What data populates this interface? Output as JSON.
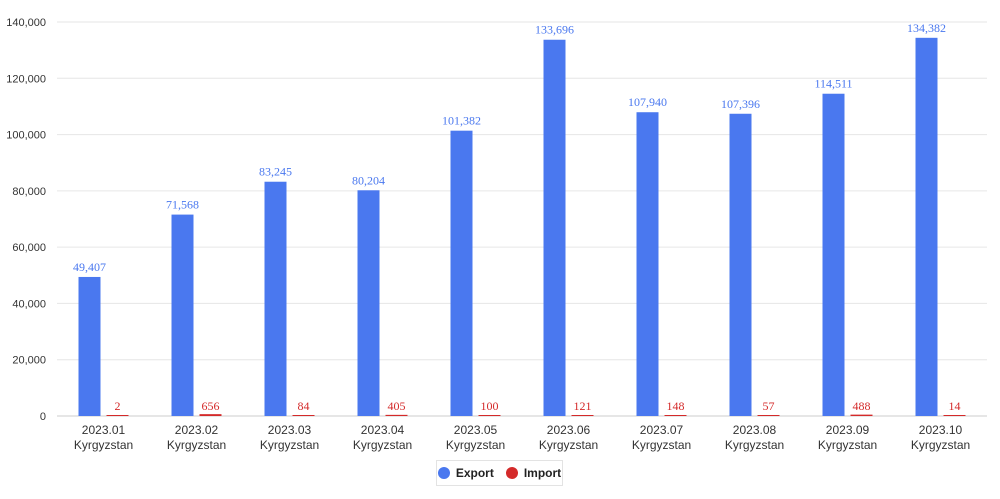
{
  "colors": {
    "export": "#4a78ef",
    "import": "#d42a2a",
    "grid": "#e6e6e6",
    "axis": "#cccccc"
  },
  "legend": {
    "export_label": "Export",
    "import_label": "Import"
  },
  "chart_data": {
    "type": "bar",
    "categories": [
      [
        "2023.01",
        "Kyrgyzstan"
      ],
      [
        "2023.02",
        "Kyrgyzstan"
      ],
      [
        "2023.03",
        "Kyrgyzstan"
      ],
      [
        "2023.04",
        "Kyrgyzstan"
      ],
      [
        "2023.05",
        "Kyrgyzstan"
      ],
      [
        "2023.06",
        "Kyrgyzstan"
      ],
      [
        "2023.07",
        "Kyrgyzstan"
      ],
      [
        "2023.08",
        "Kyrgyzstan"
      ],
      [
        "2023.09",
        "Kyrgyzstan"
      ],
      [
        "2023.10",
        "Kyrgyzstan"
      ]
    ],
    "series": [
      {
        "name": "Export",
        "values": [
          49407,
          71568,
          83245,
          80204,
          101382,
          133696,
          107940,
          107396,
          114511,
          134382
        ],
        "labels": [
          "49,407",
          "71,568",
          "83,245",
          "80,204",
          "101,382",
          "133,696",
          "107,940",
          "107,396",
          "114,511",
          "134,382"
        ]
      },
      {
        "name": "Import",
        "values": [
          2,
          656,
          84,
          405,
          100,
          121,
          148,
          57,
          488,
          14
        ],
        "labels": [
          "2",
          "656",
          "84",
          "405",
          "100",
          "121",
          "148",
          "57",
          "488",
          "14"
        ]
      }
    ],
    "ylim": [
      0,
      140000
    ],
    "yticks": [
      0,
      20000,
      40000,
      60000,
      80000,
      100000,
      120000,
      140000
    ],
    "ytick_labels": [
      "0",
      "20,000",
      "40,000",
      "60,000",
      "80,000",
      "100,000",
      "120,000",
      "140,000"
    ],
    "grid": true,
    "legend_position": "bottom-center"
  }
}
